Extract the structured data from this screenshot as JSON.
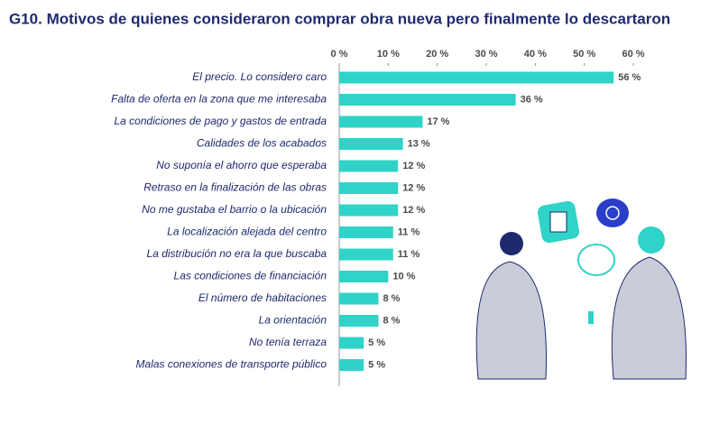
{
  "chart_data": {
    "type": "bar",
    "orientation": "horizontal",
    "title": "G10. Motivos de quienes consideraron comprar obra nueva pero finalmente lo descartaron",
    "categories": [
      "El precio. Lo considero caro",
      "Falta de oferta en la zona que me interesaba",
      "La condiciones de pago y gastos de entrada",
      "Calidades de los acabados",
      "No suponía el ahorro que esperaba",
      "Retraso en la finalización de las obras",
      "No me gustaba el barrio o la ubicación",
      "La localización alejada del centro",
      "La distribución no era la que buscaba",
      "Las condiciones de financiación",
      "El número de habitaciones",
      "La orientación",
      "No tenía terraza",
      "Malas conexiones de transporte público"
    ],
    "values": [
      56,
      36,
      17,
      13,
      12,
      12,
      12,
      11,
      11,
      10,
      8,
      8,
      5,
      5
    ],
    "value_labels": [
      "56 %",
      "36 %",
      "17 %",
      "13 %",
      "12 %",
      "12 %",
      "12 %",
      "11 %",
      "11 %",
      "10 %",
      "8 %",
      "8 %",
      "5 %",
      "5 %"
    ],
    "color": "#2fd3c7",
    "xlim": [
      0,
      60
    ],
    "xticks": [
      {
        "value": 0,
        "label": "0 %"
      },
      {
        "value": 10,
        "label": "10 %"
      },
      {
        "value": 20,
        "label": "20 %"
      },
      {
        "value": 30,
        "label": "30 %"
      },
      {
        "value": 40,
        "label": "40 %"
      },
      {
        "value": 50,
        "label": "50 %"
      },
      {
        "value": 60,
        "label": "60 %"
      }
    ],
    "grid": false
  }
}
